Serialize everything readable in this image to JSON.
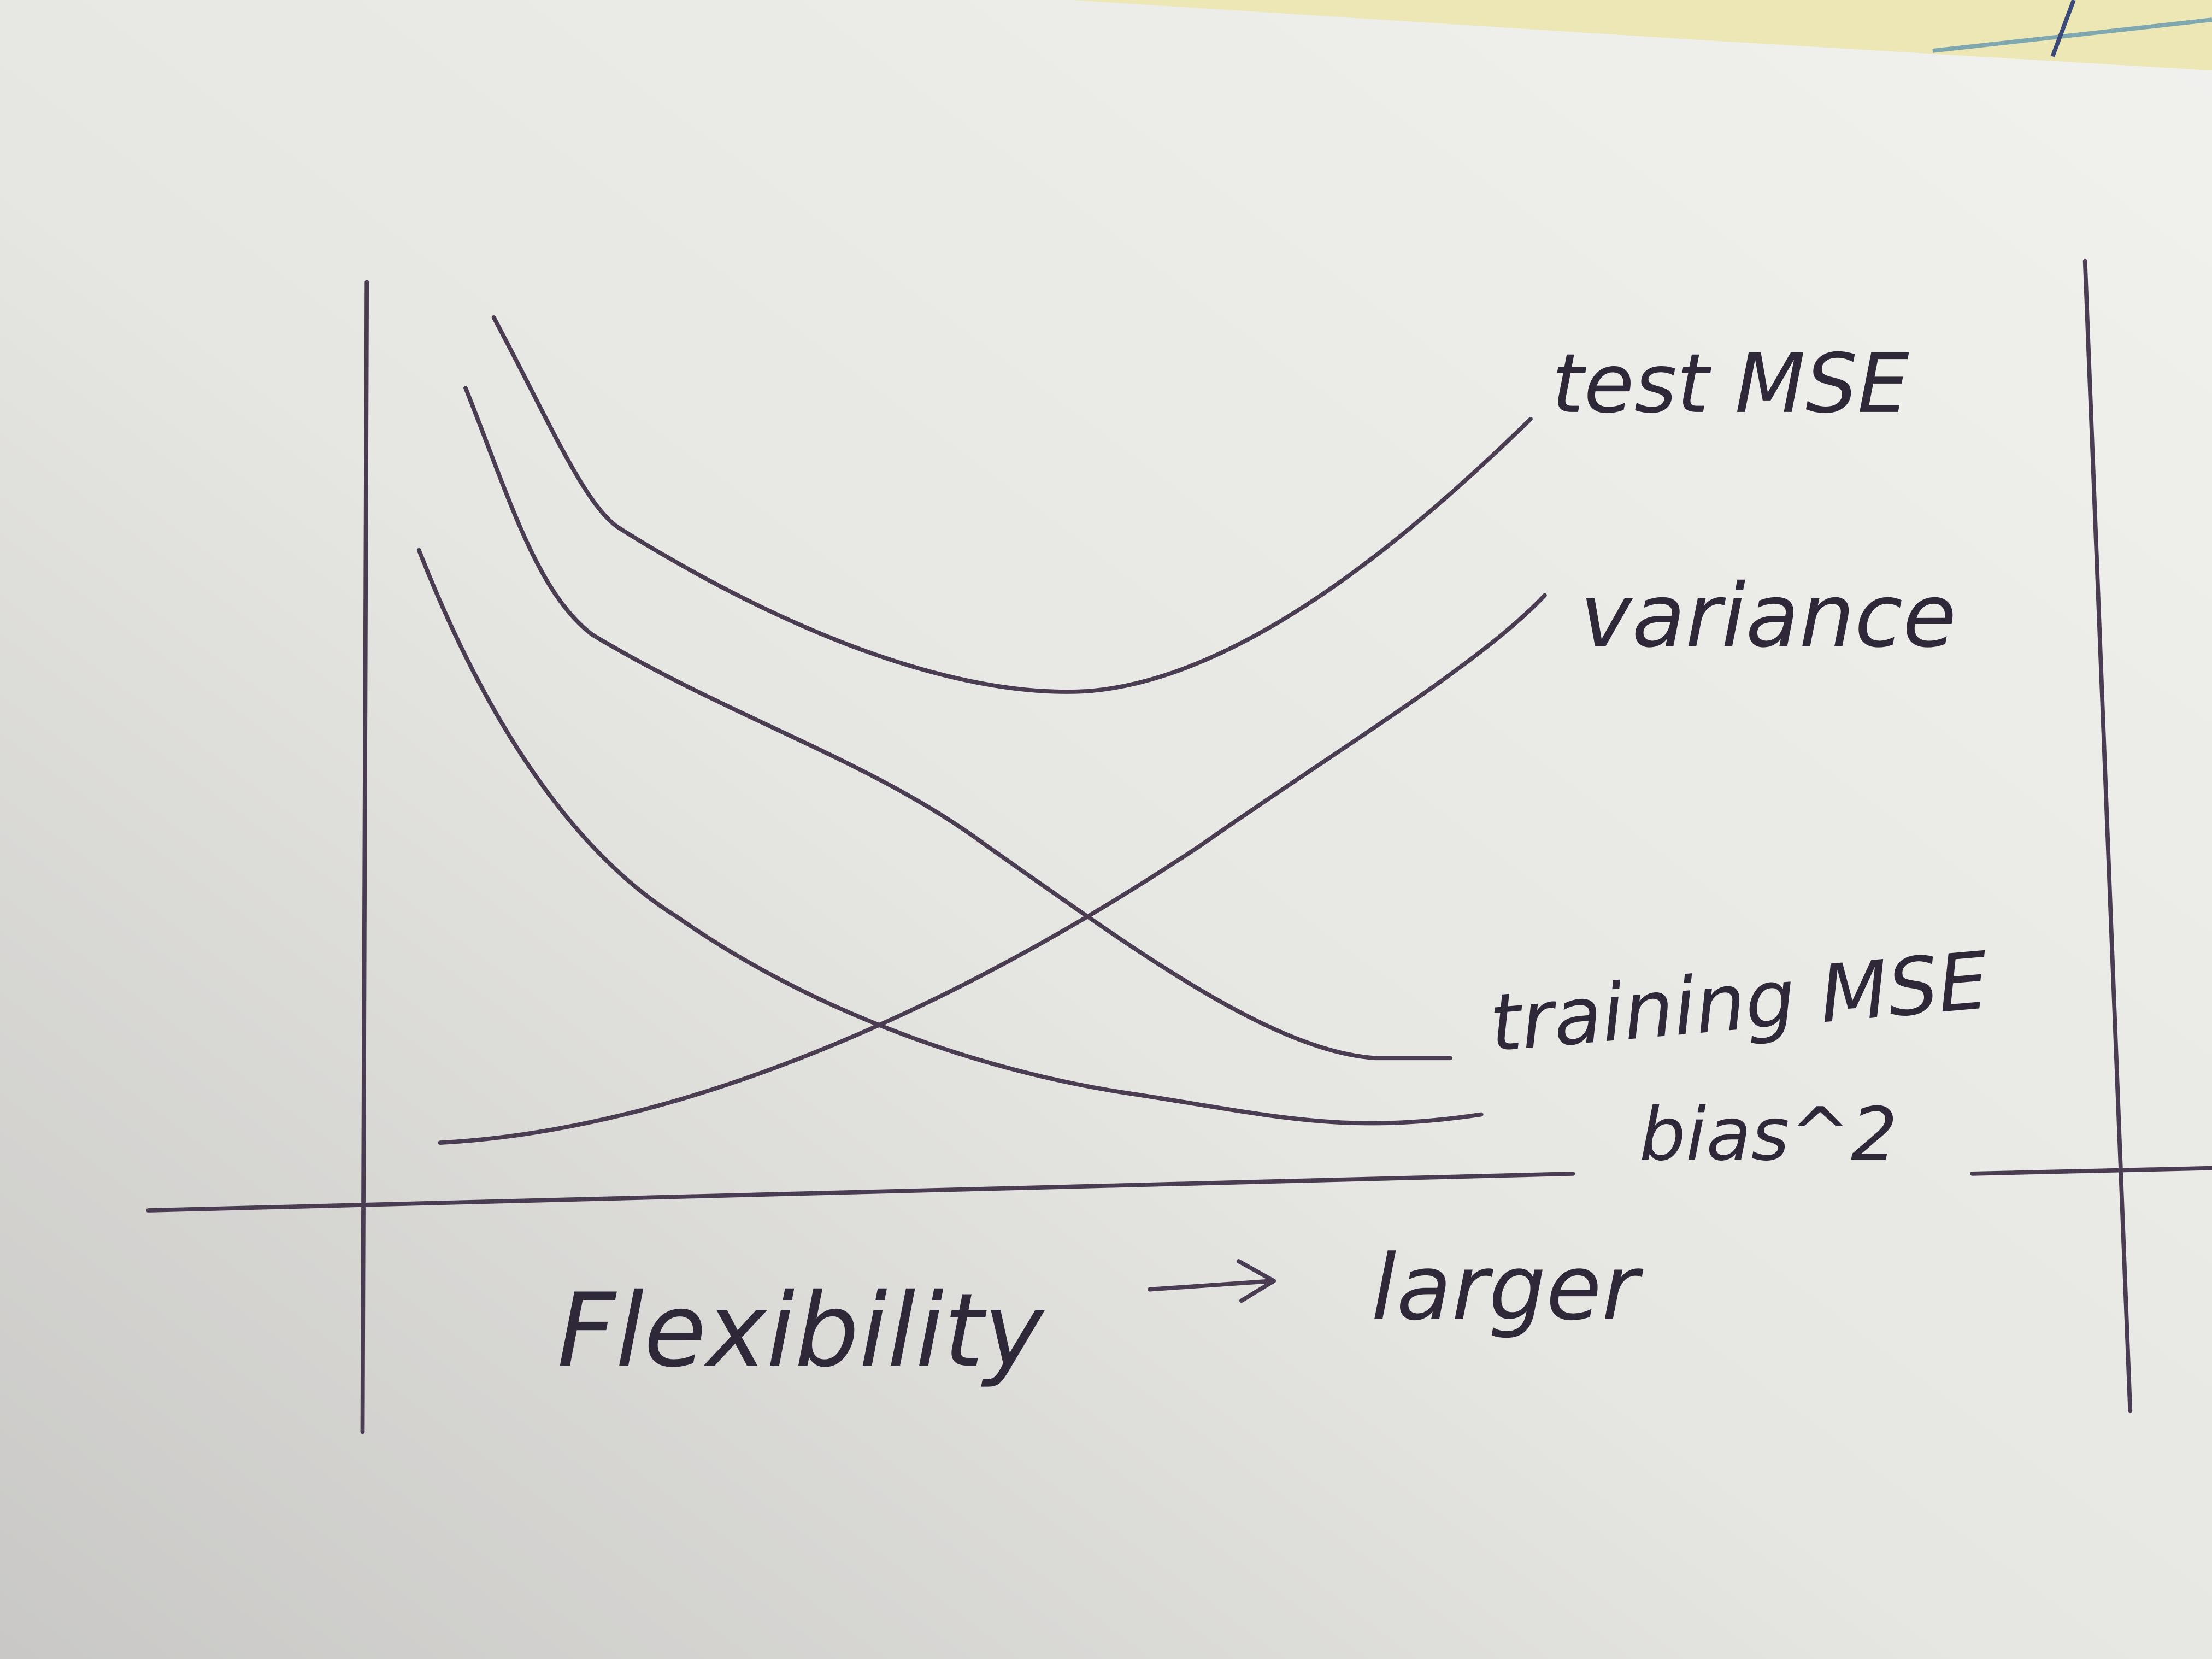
{
  "curves": [
    {
      "label": "test MSE"
    },
    {
      "label": "variance"
    },
    {
      "label": "training MSE"
    },
    {
      "label": "bias^2"
    }
  ],
  "x_axis": {
    "label": "Flexibility",
    "direction": "larger"
  }
}
